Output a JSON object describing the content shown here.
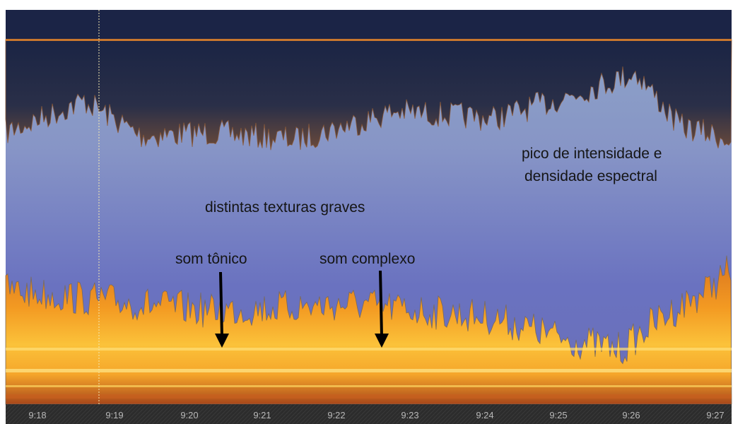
{
  "annotations": [
    "pico de intensidade e",
    "densidade espectral",
    "distintas texturas graves",
    "som tônico",
    "som complexo"
  ],
  "time_axis": [
    "9:18",
    "9:19",
    "9:20",
    "9:21",
    "9:22",
    "9:23",
    "9:24",
    "9:25",
    "9:26",
    "9:27"
  ]
}
